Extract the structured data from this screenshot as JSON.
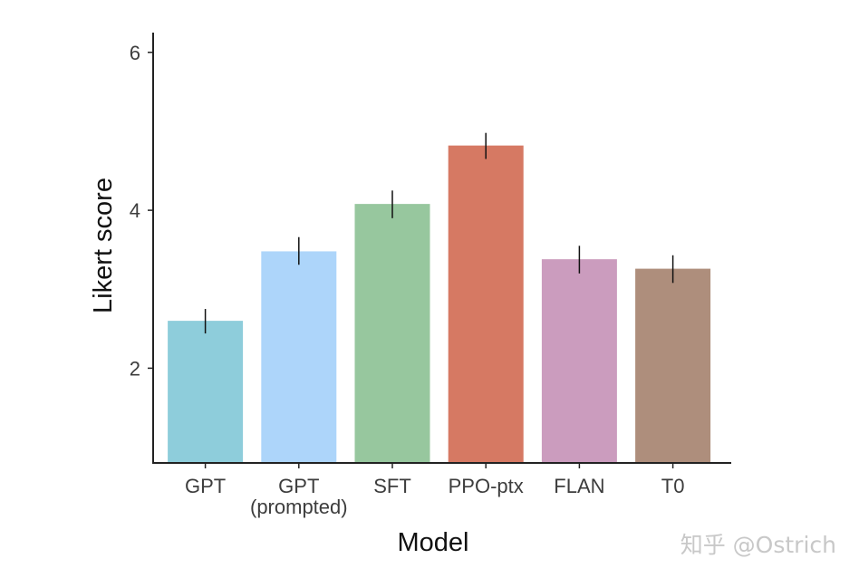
{
  "chart_data": {
    "type": "bar",
    "title": "",
    "xlabel": "Model",
    "ylabel": "Likert score",
    "categories": [
      [
        "GPT"
      ],
      [
        "GPT",
        "(prompted)"
      ],
      [
        "SFT"
      ],
      [
        "PPO-ptx"
      ],
      [
        "FLAN"
      ],
      [
        "T0"
      ]
    ],
    "values": [
      2.6,
      3.48,
      4.08,
      4.82,
      3.38,
      3.26
    ],
    "error_low": [
      2.44,
      3.31,
      3.9,
      4.65,
      3.2,
      3.08
    ],
    "error_high": [
      2.75,
      3.66,
      4.25,
      4.98,
      3.55,
      3.43
    ],
    "colors": [
      "#8ecddb",
      "#add5fa",
      "#97c79e",
      "#d67963",
      "#cb9cbe",
      "#ae8e7c"
    ],
    "yticks": [
      2,
      4,
      6
    ],
    "ylim": [
      0.8,
      6.25
    ],
    "grid": false,
    "legend": "none"
  },
  "watermark": "知乎 @Ostrich"
}
